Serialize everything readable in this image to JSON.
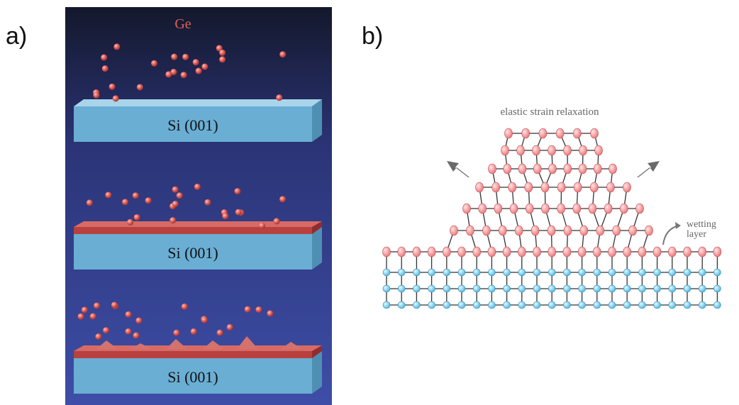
{
  "panels": [
    {
      "label": "a)",
      "title": "Ge",
      "substrates": [
        "Si (001)",
        "Si (001)",
        "Si (001)"
      ]
    },
    {
      "label": "b)",
      "caption": "elastic strain relaxation",
      "annotation": [
        "wetting",
        "layer"
      ]
    }
  ]
}
